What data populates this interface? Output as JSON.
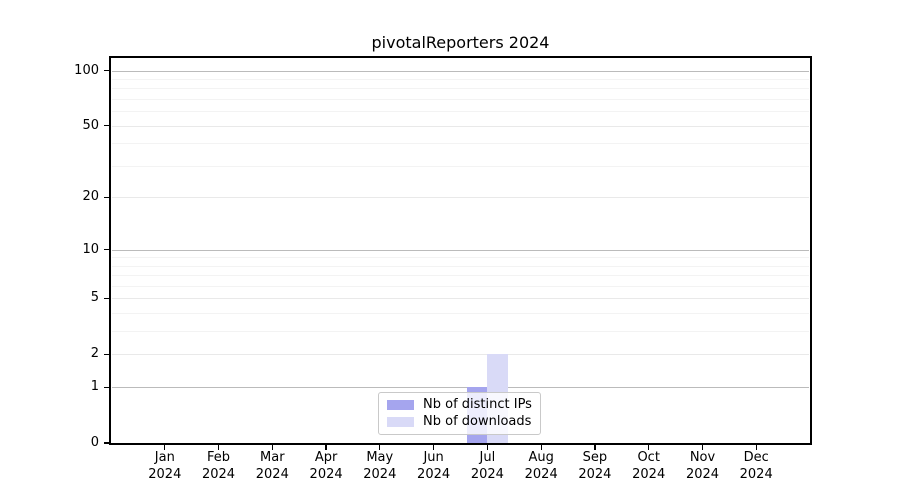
{
  "chart_data": {
    "type": "bar",
    "title": "pivotalReporters 2024",
    "categories": [
      "Jan",
      "Feb",
      "Mar",
      "Apr",
      "May",
      "Jun",
      "Jul",
      "Aug",
      "Sep",
      "Oct",
      "Nov",
      "Dec"
    ],
    "year_label": "2024",
    "series": [
      {
        "name": "Nb of distinct IPs",
        "color": "#a5a5ee",
        "values": [
          0,
          0,
          0,
          0,
          0,
          0,
          1,
          0,
          0,
          0,
          0,
          0
        ]
      },
      {
        "name": "Nb of downloads",
        "color": "#d9daf7",
        "values": [
          0,
          0,
          0,
          0,
          0,
          0,
          2,
          0,
          0,
          0,
          0,
          0
        ]
      }
    ],
    "xlabel": "",
    "ylabel": "",
    "yscale": "log10(1+y)",
    "ylim": [
      0,
      117
    ],
    "y_ticks": [
      0,
      1,
      2,
      5,
      10,
      20,
      50,
      100
    ],
    "y_minor_gridlines": [
      3,
      4,
      6,
      7,
      8,
      9,
      30,
      40,
      60,
      70,
      80,
      90
    ],
    "emphasized_gridlines": [
      1,
      10,
      100
    ],
    "grid": true,
    "legend_position": "lower center",
    "colors": {
      "axis": "#000000",
      "gridline_major": "#bbbbbb",
      "gridline_labeled": "#e9e9e9",
      "gridline_minor": "#f3f3f3",
      "legend_border": "#c9c9c9"
    }
  }
}
